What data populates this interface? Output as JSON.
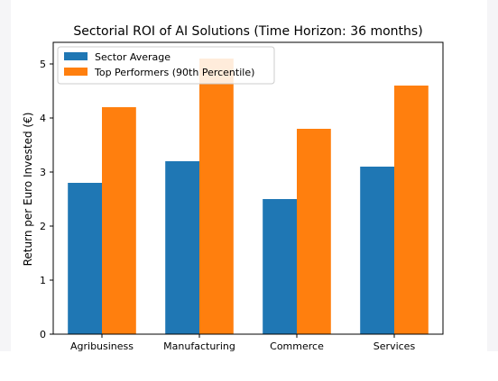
{
  "chart_data": {
    "type": "bar",
    "title": "Sectorial ROI of AI Solutions (Time Horizon: 36 months)",
    "xlabel": "",
    "ylabel": "Return per Euro Invested (€)",
    "categories": [
      "Agribusiness",
      "Manufacturing",
      "Commerce",
      "Services"
    ],
    "ylim": [
      0,
      5.4
    ],
    "yticks": [
      0,
      1,
      2,
      3,
      4,
      5
    ],
    "grid": false,
    "legend_position": "top-left",
    "series": [
      {
        "name": "Sector Average",
        "values": [
          2.8,
          3.2,
          2.5,
          3.1
        ],
        "color": "#1f77b4"
      },
      {
        "name": "Top Performers (90th Percentile)",
        "values": [
          4.2,
          5.1,
          3.8,
          4.6
        ],
        "color": "#ff7f0e"
      }
    ]
  }
}
